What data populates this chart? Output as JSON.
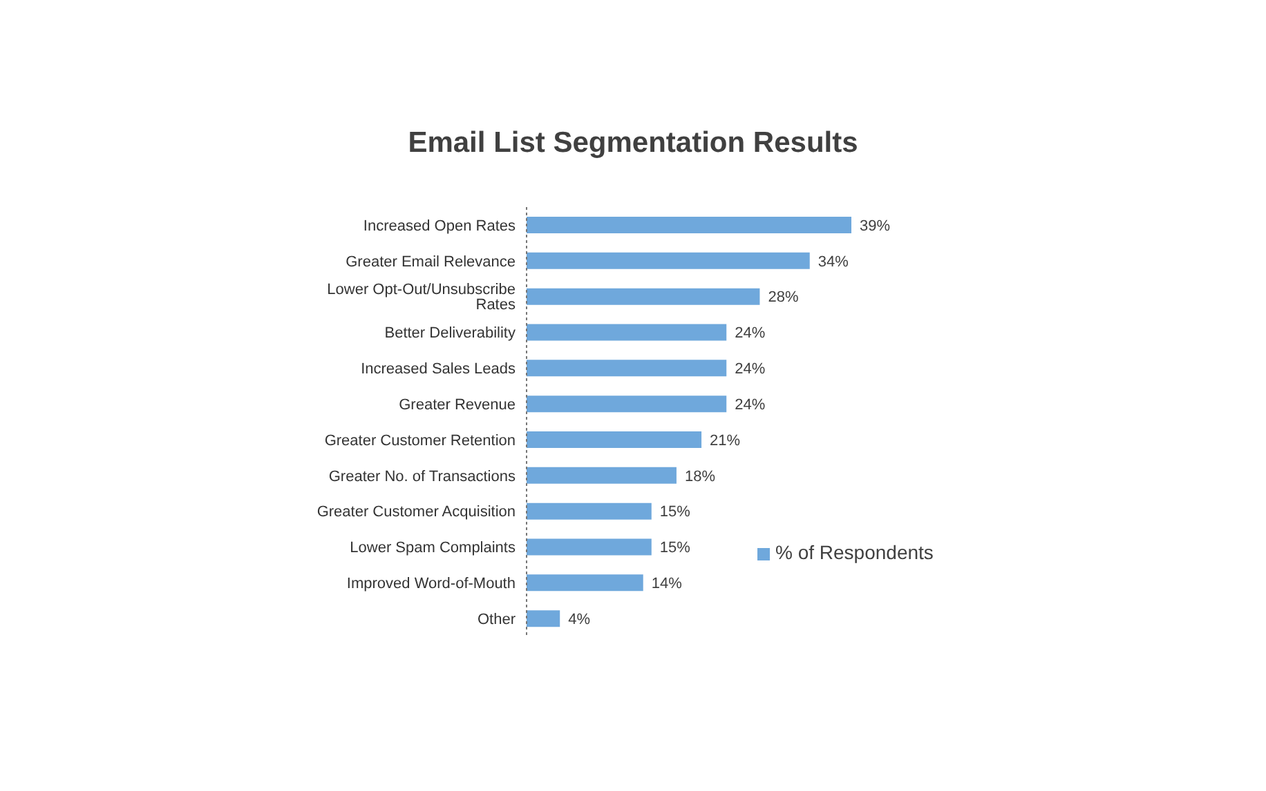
{
  "chart_data": {
    "type": "bar",
    "orientation": "horizontal",
    "title": "Email List Segmentation Results",
    "categories": [
      "Increased Open Rates",
      "Greater Email Relevance",
      "Lower Opt-Out/Unsubscribe Rates",
      "Better Deliverability",
      "Increased Sales Leads",
      "Greater Revenue",
      "Greater Customer Retention",
      "Greater No. of Transactions",
      "Greater Customer Acquisition",
      "Lower Spam Complaints",
      "Improved Word-of-Mouth",
      "Other"
    ],
    "series": [
      {
        "name": "% of Respondents",
        "color": "#6fa8dc",
        "values": [
          39,
          34,
          28,
          24,
          24,
          24,
          21,
          18,
          15,
          15,
          14,
          4
        ],
        "value_labels": [
          "39%",
          "34%",
          "28%",
          "24%",
          "24%",
          "24%",
          "21%",
          "18%",
          "15%",
          "15%",
          "14%",
          "4%"
        ]
      }
    ],
    "legend": "right",
    "grid": false
  }
}
